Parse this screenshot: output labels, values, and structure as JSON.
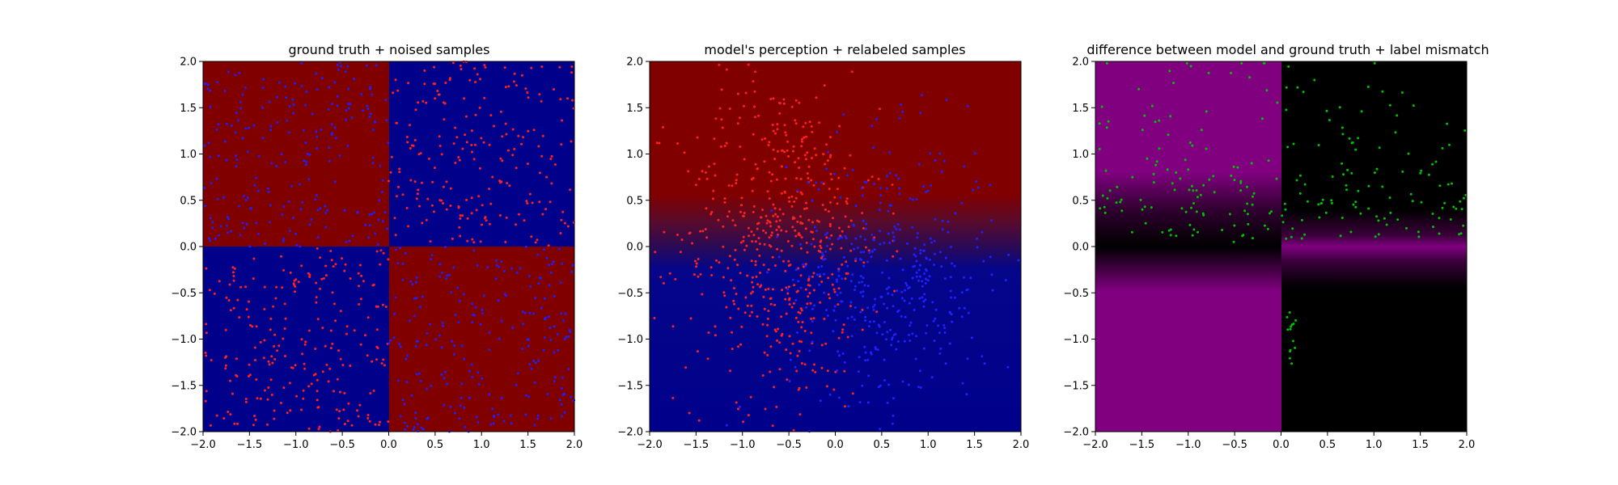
{
  "chart_data": [
    {
      "type": "heatmap",
      "title": "ground truth + noised samples",
      "xlim": [
        -2.0,
        2.0
      ],
      "ylim": [
        -2.0,
        2.0
      ],
      "xticks": [
        "−2.0",
        "−1.5",
        "−1.0",
        "−0.5",
        "0.0",
        "0.5",
        "1.0",
        "1.5",
        "2.0"
      ],
      "yticks": [
        "−2.0",
        "−1.5",
        "−1.0",
        "−0.5",
        "0.0",
        "0.5",
        "1.0",
        "1.5",
        "2.0"
      ],
      "background": "quadrant sign of x*y: red where x*y<0, blue where x*y>0",
      "colors": {
        "red_region": "#800000",
        "blue_region": "#00008b",
        "red_points": "#ff2020",
        "blue_points": "#2020ff"
      },
      "samples": "≈1000 uniformly scattered points; label color mostly opposite to region color with some noise",
      "grid": false
    },
    {
      "type": "heatmap",
      "title": "model's perception + relabeled samples",
      "xlim": [
        -2.0,
        2.0
      ],
      "ylim": [
        -2.0,
        2.0
      ],
      "xticks": [
        "−2.0",
        "−1.5",
        "−1.0",
        "−0.5",
        "0.0",
        "0.5",
        "1.0",
        "1.5",
        "2.0"
      ],
      "yticks": [
        "−2.0",
        "−1.5",
        "−1.0",
        "−0.5",
        "0.0",
        "0.5",
        "1.0",
        "1.5",
        "2.0"
      ],
      "background": "red above y≈0.25, blue below, smooth gradient band between y≈0.0 and y≈0.5",
      "colors": {
        "red_region": "#800000",
        "blue_region": "#00008b",
        "red_points": "#ff2020",
        "blue_points": "#2020ff"
      },
      "samples": "red points concentrated at x<0, blue points concentrated at x>0",
      "grid": false
    },
    {
      "type": "heatmap",
      "title": "difference between model and ground truth + label mismatch",
      "xlim": [
        -2.0,
        2.0
      ],
      "ylim": [
        -2.0,
        2.0
      ],
      "xticks": [
        "−2.0",
        "−1.5",
        "−1.0",
        "−0.5",
        "0.0",
        "0.5",
        "1.0",
        "1.5",
        "2.0"
      ],
      "yticks": [
        "−2.0",
        "−1.5",
        "−1.0",
        "−0.5",
        "0.0",
        "0.5",
        "1.0",
        "1.5",
        "2.0"
      ],
      "background": "purple where model differs from ground truth (x<0), black where equal (x>0), transition band near y≈0–0.5",
      "colors": {
        "mismatch": "#800080",
        "match": "#000000",
        "points": "#00c000"
      },
      "samples": "green mismatch points, mostly in upper half (y>0) and a few near x≈0.1, y<−0.7",
      "grid": false
    }
  ]
}
